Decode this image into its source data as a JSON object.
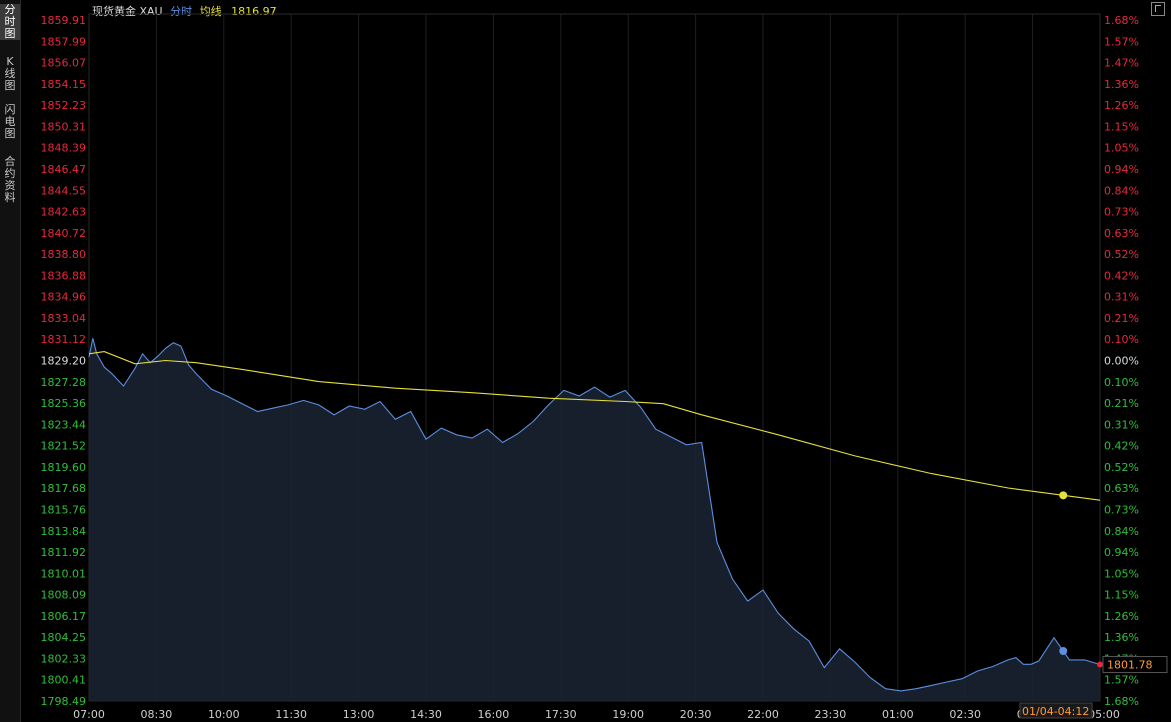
{
  "header": {
    "title": "现货黄金 XAU",
    "mode_label": "分时",
    "avg_label": "均线",
    "avg_value": "1816.97"
  },
  "sidebar": {
    "tabs": [
      {
        "label": "分时图",
        "active": true
      },
      {
        "label": "K线图",
        "active": false
      },
      {
        "label": "闪电图",
        "active": false
      },
      {
        "label": "合约资料",
        "active": false
      }
    ]
  },
  "colors": {
    "background": "#000000",
    "price_line": "#5b8fe0",
    "avg_line": "#e6e03a",
    "up": "#e8283a",
    "down": "#2fbf3a",
    "grid": "#1f1f1f"
  },
  "chart_data": {
    "type": "line",
    "title": "",
    "xlabel": "",
    "ylabel": "",
    "ylim": [
      1798.49,
      1859.91
    ],
    "baseline": 1829.2,
    "x_ticks": [
      "07:00",
      "08:30",
      "10:00",
      "11:30",
      "13:00",
      "14:30",
      "16:00",
      "17:30",
      "19:00",
      "20:30",
      "22:00",
      "23:30",
      "01:00",
      "02:30",
      "04:00",
      "05:00"
    ],
    "y_ticks": [
      1859.91,
      1857.99,
      1856.07,
      1854.15,
      1852.23,
      1850.31,
      1848.39,
      1846.47,
      1844.55,
      1842.63,
      1840.72,
      1838.8,
      1836.88,
      1834.96,
      1833.04,
      1831.12,
      1829.2,
      1827.28,
      1825.36,
      1823.44,
      1821.52,
      1819.6,
      1817.68,
      1815.76,
      1813.84,
      1811.92,
      1810.01,
      1808.09,
      1806.17,
      1804.25,
      1802.33,
      1800.41,
      1798.49
    ],
    "pct_ticks": [
      "1.68%",
      "1.57%",
      "1.47%",
      "1.36%",
      "1.26%",
      "1.15%",
      "1.05%",
      "0.94%",
      "0.84%",
      "0.73%",
      "0.63%",
      "0.52%",
      "0.42%",
      "0.31%",
      "0.21%",
      "0.10%",
      "0.00%",
      "0.10%",
      "0.21%",
      "0.31%",
      "0.42%",
      "0.52%",
      "0.63%",
      "0.73%",
      "0.84%",
      "0.94%",
      "1.05%",
      "1.15%",
      "1.26%",
      "1.36%",
      "1.47%",
      "1.57%",
      "1.68%"
    ],
    "session_minutes": 1320,
    "series": [
      {
        "role": "price",
        "minutes": [
          0,
          5,
          10,
          20,
          30,
          45,
          60,
          70,
          80,
          90,
          100,
          110,
          120,
          130,
          140,
          150,
          160,
          180,
          200,
          220,
          240,
          260,
          280,
          300,
          320,
          340,
          360,
          380,
          400,
          420,
          440,
          460,
          480,
          500,
          520,
          540,
          560,
          580,
          600,
          620,
          640,
          660,
          680,
          700,
          720,
          740,
          760,
          780,
          800,
          820,
          840,
          860,
          880,
          900,
          920,
          940,
          960,
          980,
          1000,
          1020,
          1040,
          1060,
          1080,
          1100,
          1120,
          1140,
          1160,
          1180,
          1200,
          1210,
          1220,
          1230,
          1240,
          1260,
          1280,
          1300,
          1320
        ],
        "values": [
          1829.5,
          1831.2,
          1829.8,
          1828.6,
          1828.0,
          1826.9,
          1828.5,
          1829.8,
          1829.0,
          1829.6,
          1830.3,
          1830.8,
          1830.5,
          1828.8,
          1828.0,
          1827.3,
          1826.6,
          1826.0,
          1825.3,
          1824.6,
          1824.9,
          1825.2,
          1825.6,
          1825.2,
          1824.3,
          1825.1,
          1824.8,
          1825.5,
          1823.9,
          1824.6,
          1822.1,
          1823.1,
          1822.5,
          1822.2,
          1823.0,
          1821.8,
          1822.6,
          1823.7,
          1825.2,
          1826.5,
          1826.0,
          1826.8,
          1825.9,
          1826.5,
          1825.0,
          1823.0,
          1822.3,
          1821.6,
          1821.8,
          1812.8,
          1809.5,
          1807.5,
          1808.5,
          1806.4,
          1805.0,
          1803.9,
          1801.5,
          1803.2,
          1802.0,
          1800.6,
          1799.6,
          1799.4,
          1799.6,
          1799.9,
          1800.2,
          1800.5,
          1801.2,
          1801.6,
          1802.2,
          1802.4,
          1801.8,
          1801.8,
          1802.1,
          1804.2,
          1802.2,
          1802.2,
          1801.78
        ]
      },
      {
        "role": "average",
        "minutes": [
          0,
          20,
          60,
          100,
          140,
          200,
          300,
          400,
          500,
          600,
          700,
          750,
          800,
          900,
          1000,
          1100,
          1200,
          1320
        ],
        "values": [
          1829.8,
          1830.0,
          1828.9,
          1829.2,
          1829.0,
          1828.4,
          1827.3,
          1826.7,
          1826.3,
          1825.8,
          1825.5,
          1825.3,
          1824.3,
          1822.5,
          1820.6,
          1819.0,
          1817.7,
          1816.6
        ]
      }
    ],
    "last_price": "1801.78",
    "cursor_label": "01/04-04:12",
    "cursor_minute": 1272
  }
}
